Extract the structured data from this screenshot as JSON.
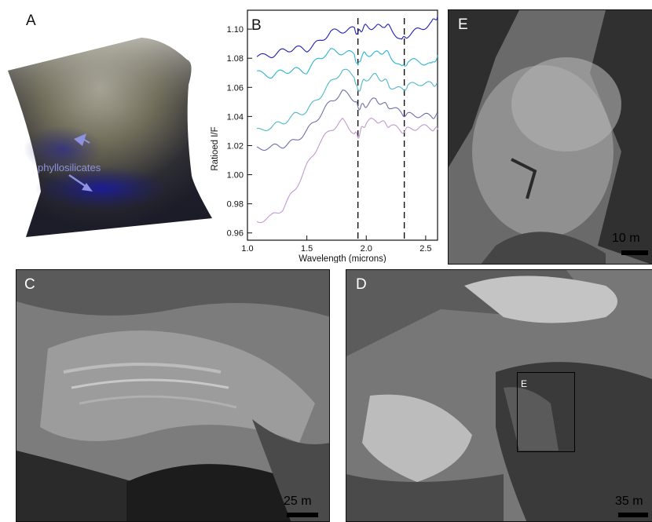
{
  "panels": {
    "a": {
      "letter": "A",
      "annotation": "phyllosilicates"
    },
    "b": {
      "letter": "B"
    },
    "c": {
      "letter": "C",
      "scale": "25 m"
    },
    "d": {
      "letter": "D",
      "scale": "35 m",
      "inset_label": "E"
    },
    "e": {
      "letter": "E",
      "scale": "10 m"
    }
  },
  "chart_data": {
    "type": "line",
    "title": "",
    "xlabel": "Wavelength (microns)",
    "ylabel": "Ratioed I/F",
    "xlim": [
      1.0,
      2.6
    ],
    "ylim": [
      0.955,
      1.113
    ],
    "xticks": [
      "1.0",
      "1.5",
      "2.0",
      "2.5"
    ],
    "yticks": [
      "0.96",
      "0.98",
      "1.00",
      "1.02",
      "1.04",
      "1.06",
      "1.08",
      "1.10"
    ],
    "vlines": [
      1.93,
      2.32
    ],
    "series": [
      {
        "color": "#1f1fb4",
        "x": [
          1.08,
          1.2,
          1.3,
          1.4,
          1.5,
          1.6,
          1.7,
          1.8,
          1.9,
          1.93,
          1.96,
          2.0,
          2.08,
          2.15,
          2.2,
          2.3,
          2.35,
          2.45,
          2.55,
          2.6
        ],
        "y": [
          1.081,
          1.082,
          1.085,
          1.087,
          1.086,
          1.091,
          1.098,
          1.099,
          1.1,
          1.097,
          1.1,
          1.102,
          1.101,
          1.103,
          1.101,
          1.092,
          1.096,
          1.1,
          1.104,
          1.109
        ]
      },
      {
        "color": "#2ab4d0",
        "x": [
          1.08,
          1.2,
          1.3,
          1.4,
          1.5,
          1.6,
          1.7,
          1.8,
          1.9,
          1.93,
          1.96,
          2.0,
          2.08,
          2.15,
          2.2,
          2.3,
          2.35,
          2.45,
          2.55,
          2.6
        ],
        "y": [
          1.07,
          1.068,
          1.071,
          1.072,
          1.071,
          1.08,
          1.085,
          1.084,
          1.083,
          1.074,
          1.082,
          1.083,
          1.083,
          1.085,
          1.082,
          1.073,
          1.078,
          1.078,
          1.075,
          1.082
        ]
      },
      {
        "color": "#4fb8c8",
        "x": [
          1.08,
          1.2,
          1.3,
          1.4,
          1.5,
          1.6,
          1.7,
          1.8,
          1.9,
          1.93,
          1.96,
          2.0,
          2.08,
          2.15,
          2.2,
          2.3,
          2.35,
          2.45,
          2.55,
          2.6
        ],
        "y": [
          1.03,
          1.033,
          1.036,
          1.041,
          1.044,
          1.053,
          1.063,
          1.072,
          1.068,
          1.056,
          1.062,
          1.066,
          1.068,
          1.065,
          1.061,
          1.058,
          1.061,
          1.063,
          1.062,
          1.063
        ]
      },
      {
        "color": "#6f6faa",
        "x": [
          1.08,
          1.2,
          1.3,
          1.4,
          1.5,
          1.6,
          1.7,
          1.8,
          1.9,
          1.93,
          1.96,
          2.0,
          2.08,
          2.15,
          2.2,
          2.3,
          2.35,
          2.45,
          2.55,
          2.6
        ],
        "y": [
          1.018,
          1.019,
          1.02,
          1.023,
          1.03,
          1.04,
          1.05,
          1.057,
          1.052,
          1.046,
          1.047,
          1.048,
          1.052,
          1.048,
          1.047,
          1.042,
          1.041,
          1.041,
          1.04,
          1.041
        ]
      },
      {
        "color": "#c09ad0",
        "x": [
          1.08,
          1.2,
          1.3,
          1.4,
          1.5,
          1.6,
          1.7,
          1.8,
          1.9,
          1.93,
          1.96,
          2.0,
          2.08,
          2.15,
          2.2,
          2.3,
          2.35,
          2.45,
          2.55,
          2.6
        ],
        "y": [
          0.968,
          0.971,
          0.977,
          0.99,
          1.006,
          1.021,
          1.031,
          1.037,
          1.029,
          1.026,
          1.031,
          1.036,
          1.038,
          1.035,
          1.034,
          1.03,
          1.031,
          1.033,
          1.032,
          1.031
        ]
      }
    ]
  }
}
